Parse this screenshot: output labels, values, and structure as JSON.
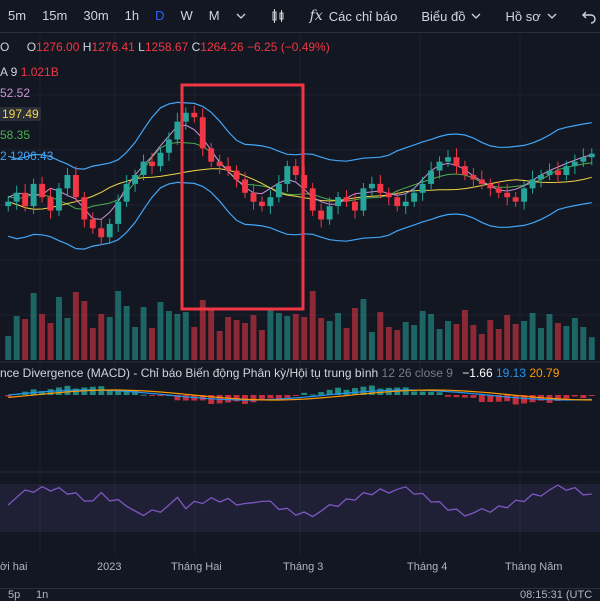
{
  "toolbar": {
    "timeframes": [
      "5m",
      "15m",
      "30m",
      "1h",
      "D",
      "W",
      "M"
    ],
    "active_timeframe": "D",
    "indicators_label": "Các chỉ báo",
    "chart_label": "Biểu đồ",
    "profile_label": "Hồ sơ"
  },
  "ohlc": {
    "symbol_fragment": "O",
    "o_label": "O",
    "o": "1276.00",
    "h_label": "H",
    "h": "1276.41",
    "l_label": "L",
    "l": "1258.67",
    "c_label": "C",
    "c": "1264.26",
    "change": "−6.25 (−0.49%)"
  },
  "legend": [
    {
      "text": "A 9",
      "value": "1.021B",
      "color": "#f23645"
    },
    {
      "text": "",
      "value": "52.52",
      "color": "#ce93d8"
    },
    {
      "text": "",
      "value": "197.49",
      "color": "#f5d547"
    },
    {
      "text": "",
      "value": "58.35",
      "color": "#4caf50"
    },
    {
      "text": "2",
      "value": "1206.43",
      "color": "#42a5f5"
    }
  ],
  "macd": {
    "title": "nce Divergence (MACD) - Chỉ báo Biến động Phân kỳ/Hội tụ trung bình",
    "params": "12 26 close 9",
    "v1": "−1.66",
    "v1_color": "#ffffff",
    "v2": "19.13",
    "v2_color": "#2196f3",
    "v3": "20.79",
    "v3_color": "#ff9800"
  },
  "xaxis": [
    "ời hai",
    "2023",
    "Tháng Hai",
    "Tháng 3",
    "Tháng 4",
    "Tháng Năm"
  ],
  "bottom": {
    "left1": "5p",
    "left2": "1n",
    "time": "08:15:31 (UTC"
  },
  "colors": {
    "up": "#26a69a",
    "down": "#f23645",
    "bg": "#131722",
    "highlight": "#f23645"
  },
  "chart_data": {
    "type": "candlestick",
    "series": [
      {
        "name": "Price",
        "values": [
          1210,
          1220,
          1205,
          1230,
          1215,
          1200,
          1225,
          1240,
          1215,
          1190,
          1180,
          1170,
          1185,
          1210,
          1230,
          1240,
          1255,
          1250,
          1265,
          1280,
          1300,
          1310,
          1305,
          1270,
          1255,
          1250,
          1245,
          1235,
          1220,
          1210,
          1205,
          1215,
          1230,
          1250,
          1240,
          1225,
          1200,
          1190,
          1205,
          1215,
          1210,
          1200,
          1225,
          1230,
          1220,
          1215,
          1205,
          1210,
          1220,
          1230,
          1245,
          1255,
          1260,
          1250,
          1240,
          1235,
          1230,
          1225,
          1220,
          1215,
          1210,
          1225,
          1235,
          1240,
          1245,
          1240,
          1250,
          1255,
          1260,
          1264
        ]
      }
    ]
  }
}
